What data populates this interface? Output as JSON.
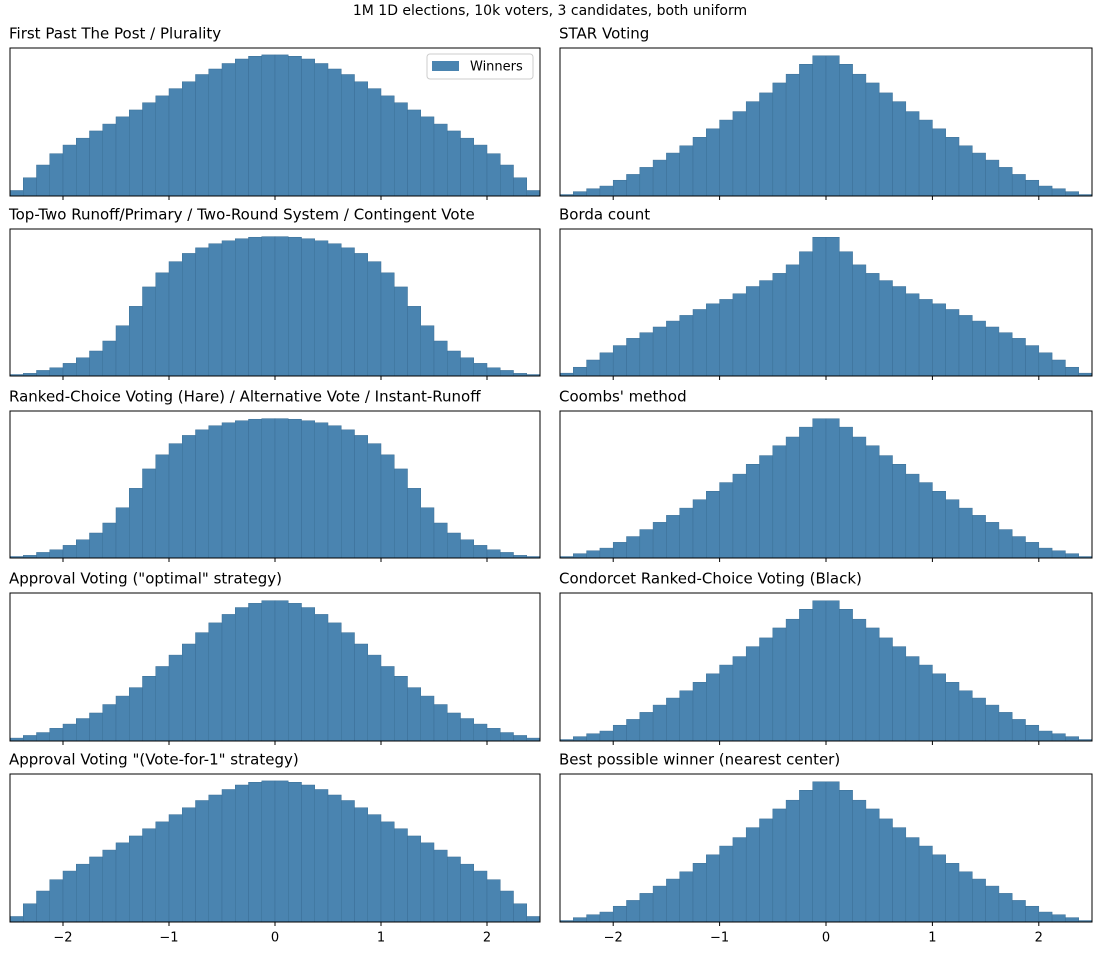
{
  "title": "1M 1D elections, 10k voters, 3 candidates, both uniform",
  "chart_data": [
    {
      "type": "histogram",
      "title": "First Past The Post / Plurality",
      "legend": "upper right",
      "xlim": [
        -2.5,
        2.5
      ],
      "ylim": [
        0,
        43000
      ],
      "bins": [
        -2.5,
        -2.375,
        -2.25,
        -2.125,
        -2,
        -1.875,
        -1.75,
        -1.625,
        -1.5,
        -1.375,
        -1.25,
        -1.125,
        -1,
        -0.875,
        -0.75,
        -0.625,
        -0.5,
        -0.375,
        -0.25,
        -0.125,
        0,
        0.125,
        0.25,
        0.375,
        0.5,
        0.625,
        0.75,
        0.875,
        1,
        1.125,
        1.25,
        1.375,
        1.5,
        1.625,
        1.75,
        1.875,
        2,
        2.125,
        2.25,
        2.375,
        2.5
      ],
      "series": [
        {
          "name": "Winners",
          "color": "#4a84b0",
          "values": [
            1600,
            5300,
            9000,
            12300,
            14800,
            16800,
            18900,
            20900,
            23000,
            25000,
            27100,
            29100,
            31200,
            33200,
            35300,
            36900,
            38500,
            39800,
            40600,
            41000,
            41000,
            40600,
            39800,
            38500,
            36900,
            35300,
            33200,
            31200,
            29100,
            27100,
            25000,
            23000,
            20900,
            18900,
            16800,
            14800,
            12300,
            9000,
            5300,
            1600
          ]
        }
      ]
    },
    {
      "type": "histogram",
      "title": "STAR Voting",
      "xlim": [
        -2.5,
        2.5
      ],
      "ylim": [
        0,
        61000
      ],
      "bins": [
        -2.5,
        -2.375,
        -2.25,
        -2.125,
        -2,
        -1.875,
        -1.75,
        -1.625,
        -1.5,
        -1.375,
        -1.25,
        -1.125,
        -1,
        -0.875,
        -0.75,
        -0.625,
        -0.5,
        -0.375,
        -0.25,
        -0.125,
        0,
        0.125,
        0.25,
        0.375,
        0.5,
        0.625,
        0.75,
        0.875,
        1,
        1.125,
        1.25,
        1.375,
        1.5,
        1.625,
        1.75,
        1.875,
        2,
        2.125,
        2.25,
        2.375,
        2.5
      ],
      "series": [
        {
          "color": "#4a84b0",
          "values": [
            600,
            1800,
            3000,
            4100,
            6500,
            8900,
            11800,
            14800,
            17700,
            20700,
            24200,
            27700,
            31300,
            34800,
            38900,
            42500,
            46600,
            50200,
            54300,
            57800,
            57800,
            54300,
            50200,
            46600,
            42500,
            38900,
            34800,
            31300,
            27700,
            24200,
            20700,
            17700,
            14800,
            11800,
            8900,
            6500,
            4100,
            3000,
            1800,
            600
          ]
        }
      ]
    },
    {
      "type": "histogram",
      "title": "Top-Two Runoff/Primary / Two-Round System / Contingent Vote",
      "xlim": [
        -2.5,
        2.5
      ],
      "ylim": [
        0,
        50000
      ],
      "bins": [
        -2.5,
        -2.375,
        -2.25,
        -2.125,
        -2,
        -1.875,
        -1.75,
        -1.625,
        -1.5,
        -1.375,
        -1.25,
        -1.125,
        -1,
        -0.875,
        -0.75,
        -0.625,
        -0.5,
        -0.375,
        -0.25,
        -0.125,
        0,
        0.125,
        0.25,
        0.375,
        0.5,
        0.625,
        0.75,
        0.875,
        1,
        1.125,
        1.25,
        1.375,
        1.5,
        1.625,
        1.75,
        1.875,
        2,
        2.125,
        2.25,
        2.375,
        2.5
      ],
      "series": [
        {
          "color": "#4a84b0",
          "values": [
            500,
            900,
            1900,
            2800,
            4300,
            6200,
            8500,
            11900,
            17100,
            23700,
            30300,
            35100,
            38900,
            41700,
            43600,
            45000,
            46000,
            46700,
            47200,
            47400,
            47400,
            47200,
            46700,
            46000,
            45000,
            43600,
            41700,
            38900,
            35100,
            30300,
            23700,
            17100,
            11900,
            8500,
            6200,
            4300,
            2800,
            1900,
            900,
            500
          ]
        }
      ]
    },
    {
      "type": "histogram",
      "title": "Borda count",
      "xlim": [
        -2.5,
        2.5
      ],
      "ylim": [
        0,
        57000
      ],
      "bins": [
        -2.5,
        -2.375,
        -2.25,
        -2.125,
        -2,
        -1.875,
        -1.75,
        -1.625,
        -1.5,
        -1.375,
        -1.25,
        -1.125,
        -1,
        -0.875,
        -0.75,
        -0.625,
        -0.5,
        -0.375,
        -0.25,
        -0.125,
        0,
        0.125,
        0.25,
        0.375,
        0.5,
        0.625,
        0.75,
        0.875,
        1,
        1.125,
        1.25,
        1.375,
        1.5,
        1.625,
        1.75,
        1.875,
        2,
        2.125,
        2.25,
        2.375,
        2.5
      ],
      "series": [
        {
          "color": "#4a84b0",
          "values": [
            1100,
            3400,
            6200,
            9000,
            11800,
            14600,
            16800,
            19000,
            21300,
            23500,
            25800,
            28000,
            29700,
            31900,
            34700,
            37000,
            39800,
            43100,
            48200,
            53800,
            53800,
            48200,
            43100,
            39800,
            37000,
            34700,
            31900,
            29700,
            28000,
            25800,
            23500,
            21300,
            19000,
            16800,
            14600,
            11800,
            9000,
            6200,
            3400,
            1100
          ]
        }
      ]
    },
    {
      "type": "histogram",
      "title": "Ranked-Choice Voting (Hare) / Alternative Vote / Instant-Runoff",
      "xlim": [
        -2.5,
        2.5
      ],
      "ylim": [
        0,
        50000
      ],
      "bins": [
        -2.5,
        -2.375,
        -2.25,
        -2.125,
        -2,
        -1.875,
        -1.75,
        -1.625,
        -1.5,
        -1.375,
        -1.25,
        -1.125,
        -1,
        -0.875,
        -0.75,
        -0.625,
        -0.5,
        -0.375,
        -0.25,
        -0.125,
        0,
        0.125,
        0.25,
        0.375,
        0.5,
        0.625,
        0.75,
        0.875,
        1,
        1.125,
        1.25,
        1.375,
        1.5,
        1.625,
        1.75,
        1.875,
        2,
        2.125,
        2.25,
        2.375,
        2.5
      ],
      "series": [
        {
          "color": "#4a84b0",
          "values": [
            500,
            900,
            1900,
            2800,
            4300,
            6200,
            8500,
            11900,
            17100,
            23700,
            30300,
            35100,
            38900,
            41700,
            43600,
            45000,
            46000,
            46700,
            47200,
            47400,
            47400,
            47200,
            46700,
            46000,
            45000,
            43600,
            41700,
            38900,
            35100,
            30300,
            23700,
            17100,
            11900,
            8500,
            6200,
            4300,
            2800,
            1900,
            900,
            500
          ]
        }
      ]
    },
    {
      "type": "histogram",
      "title": "Coombs' method",
      "xlim": [
        -2.5,
        2.5
      ],
      "ylim": [
        0,
        61000
      ],
      "bins": [
        -2.5,
        -2.375,
        -2.25,
        -2.125,
        -2,
        -1.875,
        -1.75,
        -1.625,
        -1.5,
        -1.375,
        -1.25,
        -1.125,
        -1,
        -0.875,
        -0.75,
        -0.625,
        -0.5,
        -0.375,
        -0.25,
        -0.125,
        0,
        0.125,
        0.25,
        0.375,
        0.5,
        0.625,
        0.75,
        0.875,
        1,
        1.125,
        1.25,
        1.375,
        1.5,
        1.625,
        1.75,
        1.875,
        2,
        2.125,
        2.25,
        2.375,
        2.5
      ],
      "series": [
        {
          "color": "#4a84b0",
          "values": [
            600,
            1800,
            3000,
            4100,
            6500,
            8900,
            11800,
            14800,
            17700,
            20700,
            24200,
            27700,
            31300,
            34800,
            38900,
            42500,
            46600,
            50200,
            54300,
            57800,
            57800,
            54300,
            50200,
            46600,
            42500,
            38900,
            34800,
            31300,
            27700,
            24200,
            20700,
            17700,
            14800,
            11800,
            8900,
            6500,
            4100,
            3000,
            1800,
            600
          ]
        }
      ]
    },
    {
      "type": "histogram",
      "title": "Approval Voting (\"optimal\" strategy)",
      "xlim": [
        -2.5,
        2.5
      ],
      "ylim": [
        0,
        56000
      ],
      "bins": [
        -2.5,
        -2.375,
        -2.25,
        -2.125,
        -2,
        -1.875,
        -1.75,
        -1.625,
        -1.5,
        -1.375,
        -1.25,
        -1.125,
        -1,
        -0.875,
        -0.75,
        -0.625,
        -0.5,
        -0.375,
        -0.25,
        -0.125,
        0,
        0.125,
        0.25,
        0.375,
        0.5,
        0.625,
        0.75,
        0.875,
        1,
        1.125,
        1.25,
        1.375,
        1.5,
        1.625,
        1.75,
        1.875,
        2,
        2.125,
        2.25,
        2.375,
        2.5
      ],
      "series": [
        {
          "color": "#4a84b0",
          "values": [
            1100,
            2100,
            3200,
            4800,
            6400,
            8500,
            10600,
            13800,
            17000,
            20200,
            24500,
            28200,
            32500,
            36700,
            41000,
            44700,
            47900,
            50500,
            52100,
            53100,
            53100,
            52100,
            50500,
            47900,
            44700,
            41000,
            36700,
            32500,
            28200,
            24500,
            20200,
            17000,
            13800,
            10600,
            8500,
            6400,
            4800,
            3200,
            2100,
            1100
          ]
        }
      ]
    },
    {
      "type": "histogram",
      "title": "Condorcet Ranked-Choice Voting (Black)",
      "xlim": [
        -2.5,
        2.5
      ],
      "ylim": [
        0,
        61000
      ],
      "bins": [
        -2.5,
        -2.375,
        -2.25,
        -2.125,
        -2,
        -1.875,
        -1.75,
        -1.625,
        -1.5,
        -1.375,
        -1.25,
        -1.125,
        -1,
        -0.875,
        -0.75,
        -0.625,
        -0.5,
        -0.375,
        -0.25,
        -0.125,
        0,
        0.125,
        0.25,
        0.375,
        0.5,
        0.625,
        0.75,
        0.875,
        1,
        1.125,
        1.25,
        1.375,
        1.5,
        1.625,
        1.75,
        1.875,
        2,
        2.125,
        2.25,
        2.375,
        2.5
      ],
      "series": [
        {
          "color": "#4a84b0",
          "values": [
            600,
            1800,
            3000,
            4100,
            6500,
            8900,
            11800,
            14800,
            17700,
            20700,
            24200,
            27700,
            31300,
            34800,
            38900,
            42500,
            46600,
            50200,
            54300,
            57800,
            57800,
            54300,
            50200,
            46600,
            42500,
            38900,
            34800,
            31300,
            27700,
            24200,
            20700,
            17700,
            14800,
            11800,
            8900,
            6500,
            4100,
            3000,
            1800,
            600
          ]
        }
      ]
    },
    {
      "type": "histogram",
      "title": "Approval Voting \"(Vote-for-1\" strategy)",
      "xlim": [
        -2.5,
        2.5
      ],
      "ylim": [
        0,
        43000
      ],
      "xticks": [
        {
          "value": -2,
          "label": "−2"
        },
        {
          "value": -1,
          "label": "−1"
        },
        0,
        1,
        2
      ],
      "bins": [
        -2.5,
        -2.375,
        -2.25,
        -2.125,
        -2,
        -1.875,
        -1.75,
        -1.625,
        -1.5,
        -1.375,
        -1.25,
        -1.125,
        -1,
        -0.875,
        -0.75,
        -0.625,
        -0.5,
        -0.375,
        -0.25,
        -0.125,
        0,
        0.125,
        0.25,
        0.375,
        0.5,
        0.625,
        0.75,
        0.875,
        1,
        1.125,
        1.25,
        1.375,
        1.5,
        1.625,
        1.75,
        1.875,
        2,
        2.125,
        2.25,
        2.375,
        2.5
      ],
      "series": [
        {
          "color": "#4a84b0",
          "values": [
            1600,
            5300,
            9000,
            12300,
            14800,
            16800,
            18900,
            20900,
            23000,
            25000,
            27100,
            29100,
            31200,
            33200,
            35300,
            36900,
            38500,
            39800,
            40600,
            41000,
            41000,
            40600,
            39800,
            38500,
            36900,
            35300,
            33200,
            31200,
            29100,
            27100,
            25000,
            23000,
            20900,
            18900,
            16800,
            14800,
            12300,
            9000,
            5300,
            1600
          ]
        }
      ]
    },
    {
      "type": "histogram",
      "title": "Best possible winner (nearest center)",
      "xlim": [
        -2.5,
        2.5
      ],
      "ylim": [
        0,
        61000
      ],
      "xticks": [
        {
          "value": -2,
          "label": "−2"
        },
        {
          "value": -1,
          "label": "−1"
        },
        0,
        1,
        2
      ],
      "bins": [
        -2.5,
        -2.375,
        -2.25,
        -2.125,
        -2,
        -1.875,
        -1.75,
        -1.625,
        -1.5,
        -1.375,
        -1.25,
        -1.125,
        -1,
        -0.875,
        -0.75,
        -0.625,
        -0.5,
        -0.375,
        -0.25,
        -0.125,
        0,
        0.125,
        0.25,
        0.375,
        0.5,
        0.625,
        0.75,
        0.875,
        1,
        1.125,
        1.25,
        1.375,
        1.5,
        1.625,
        1.75,
        1.875,
        2,
        2.125,
        2.25,
        2.375,
        2.5
      ],
      "series": [
        {
          "color": "#4a84b0",
          "values": [
            600,
            1800,
            3000,
            4100,
            6500,
            8900,
            11800,
            14800,
            17700,
            20700,
            24200,
            27700,
            31300,
            34800,
            38900,
            42500,
            46600,
            50200,
            54300,
            57800,
            57800,
            54300,
            50200,
            46600,
            42500,
            38900,
            34800,
            31300,
            27700,
            24200,
            20700,
            17700,
            14800,
            11800,
            8900,
            6500,
            4100,
            3000,
            1800,
            600
          ]
        }
      ]
    }
  ]
}
